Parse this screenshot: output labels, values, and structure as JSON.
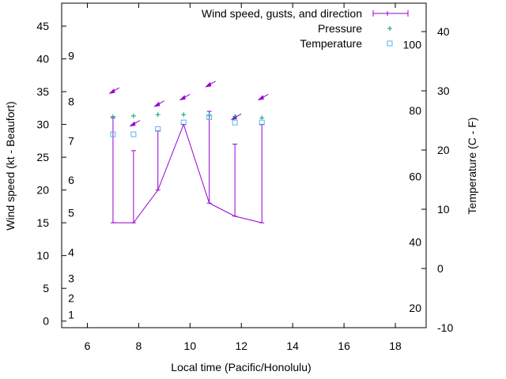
{
  "chart_data": {
    "type": "line",
    "xlabel": "Local time (Pacific/Honolulu)",
    "ylabel_left": "Wind speed (kt - Beaufort)",
    "ylabel_right": "Temperature (C - F)",
    "xlim": [
      5,
      19.2
    ],
    "xticks": [
      6,
      8,
      10,
      12,
      14,
      16,
      18
    ],
    "y_wind_lim": [
      -1,
      48.5
    ],
    "y_wind_ticks": [
      0,
      5,
      10,
      15,
      20,
      25,
      30,
      35,
      40,
      45
    ],
    "y_temp_c_ticks": [
      -10,
      0,
      10,
      20,
      30,
      40
    ],
    "y_temp_f_ticks": [
      20,
      40,
      60,
      80,
      100
    ],
    "beaufort_labels": [
      "1",
      "2",
      "3",
      "4",
      "5",
      "6",
      "7",
      "8",
      "9"
    ],
    "grid": false,
    "legend_position": "top-right",
    "legend": [
      "Wind speed, gusts, and direction",
      "Pressure",
      "Temperature"
    ],
    "series": [
      {
        "name": "Wind speed, gusts, and direction",
        "color": "#9400d3",
        "x": [
          7.0,
          7.8,
          8.75,
          9.75,
          10.75,
          11.75,
          12.8
        ],
        "speed": [
          15,
          15,
          20,
          30,
          18,
          16,
          15
        ],
        "gust": [
          31,
          26,
          29,
          30,
          32,
          27,
          30
        ],
        "direction_marker_y": [
          35,
          30,
          33,
          34,
          36,
          31,
          34
        ]
      },
      {
        "name": "Pressure",
        "color": "#009e73",
        "x": [
          7.0,
          7.8,
          8.75,
          9.75,
          10.75,
          11.75,
          12.8
        ],
        "y": [
          31.2,
          31.3,
          31.5,
          31.5,
          31.4,
          31.2,
          31.0
        ]
      },
      {
        "name": "Temperature",
        "color": "#56b4e9",
        "x": [
          7.0,
          7.8,
          8.75,
          9.75,
          10.75,
          11.75,
          12.8
        ],
        "y": [
          28.5,
          28.5,
          29.3,
          30.3,
          31.1,
          30.3,
          30.3
        ]
      }
    ]
  }
}
